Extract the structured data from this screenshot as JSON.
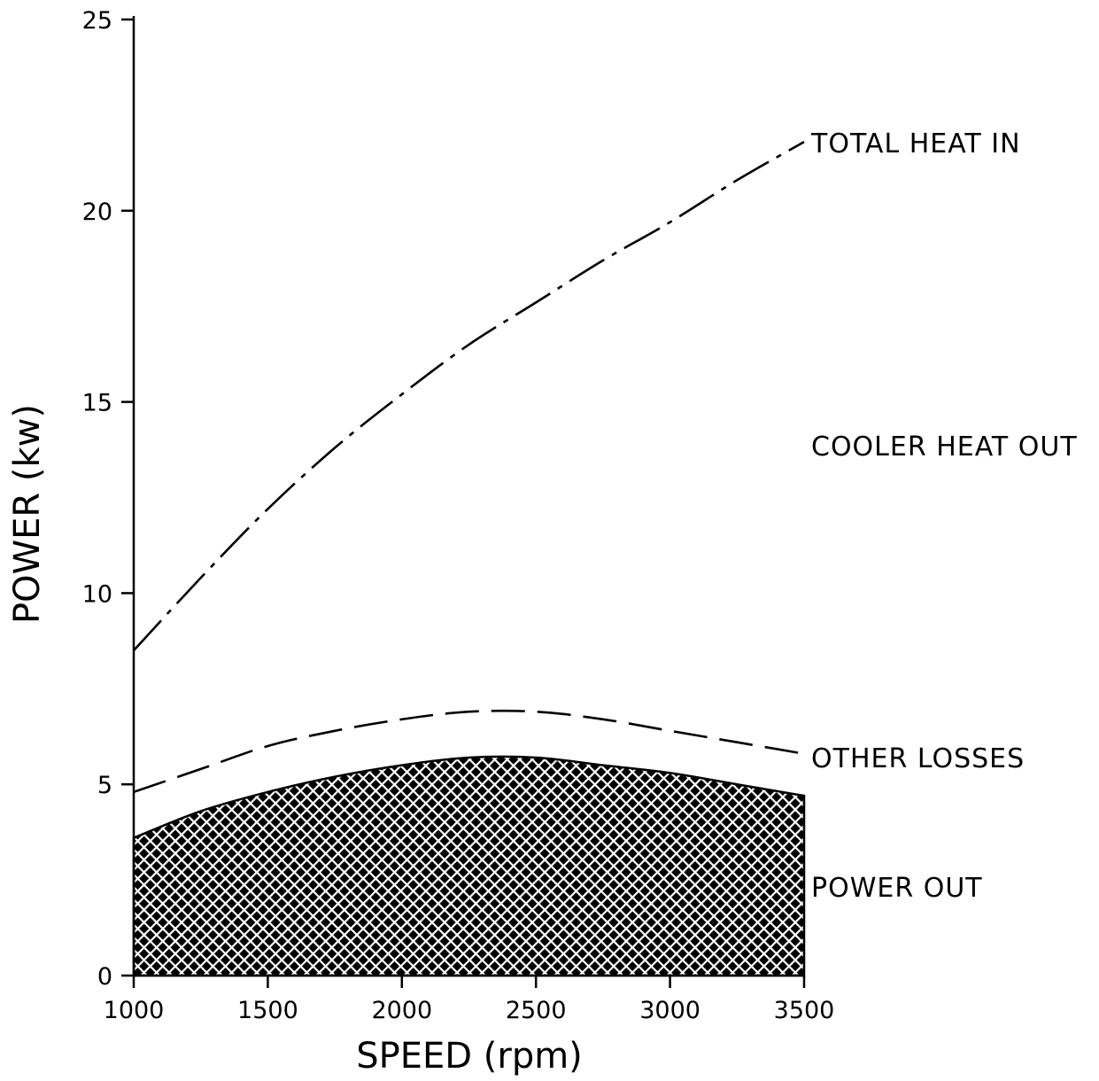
{
  "chart_data": {
    "type": "area",
    "title": "",
    "xlabel": "SPEED (rpm)",
    "ylabel": "POWER (kw)",
    "xlim": [
      1000,
      3500
    ],
    "ylim": [
      0,
      25
    ],
    "xticks": [
      "1000",
      "1500",
      "2000",
      "2500",
      "3000",
      "3500"
    ],
    "yticks": [
      "0",
      "5",
      "10",
      "15",
      "20",
      "25"
    ],
    "grid": false,
    "x": [
      1000,
      1250,
      1500,
      1750,
      2000,
      2250,
      2500,
      2750,
      3000,
      3250,
      3500
    ],
    "series": [
      {
        "name": "TOTAL HEAT IN",
        "style": "dash-dot",
        "values": [
          8.5,
          10.4,
          12.2,
          13.8,
          15.2,
          16.5,
          17.6,
          18.7,
          19.7,
          20.8,
          21.8
        ]
      },
      {
        "name": "OTHER LOSSES",
        "style": "dashed",
        "values": [
          4.8,
          5.4,
          6.0,
          6.4,
          6.7,
          6.9,
          6.9,
          6.7,
          6.4,
          6.1,
          5.8
        ]
      },
      {
        "name": "POWER OUT",
        "style": "crosshatch-fill",
        "values": [
          3.6,
          4.3,
          4.8,
          5.2,
          5.5,
          5.7,
          5.7,
          5.5,
          5.3,
          5.0,
          4.7
        ]
      }
    ],
    "region_labels": [
      {
        "text": "TOTAL HEAT IN"
      },
      {
        "text": "COOLER HEAT OUT"
      },
      {
        "text": "OTHER LOSSES"
      },
      {
        "text": "POWER OUT"
      }
    ],
    "colors": {
      "line": "#000000",
      "fill": "#000000",
      "background": "#ffffff"
    }
  }
}
